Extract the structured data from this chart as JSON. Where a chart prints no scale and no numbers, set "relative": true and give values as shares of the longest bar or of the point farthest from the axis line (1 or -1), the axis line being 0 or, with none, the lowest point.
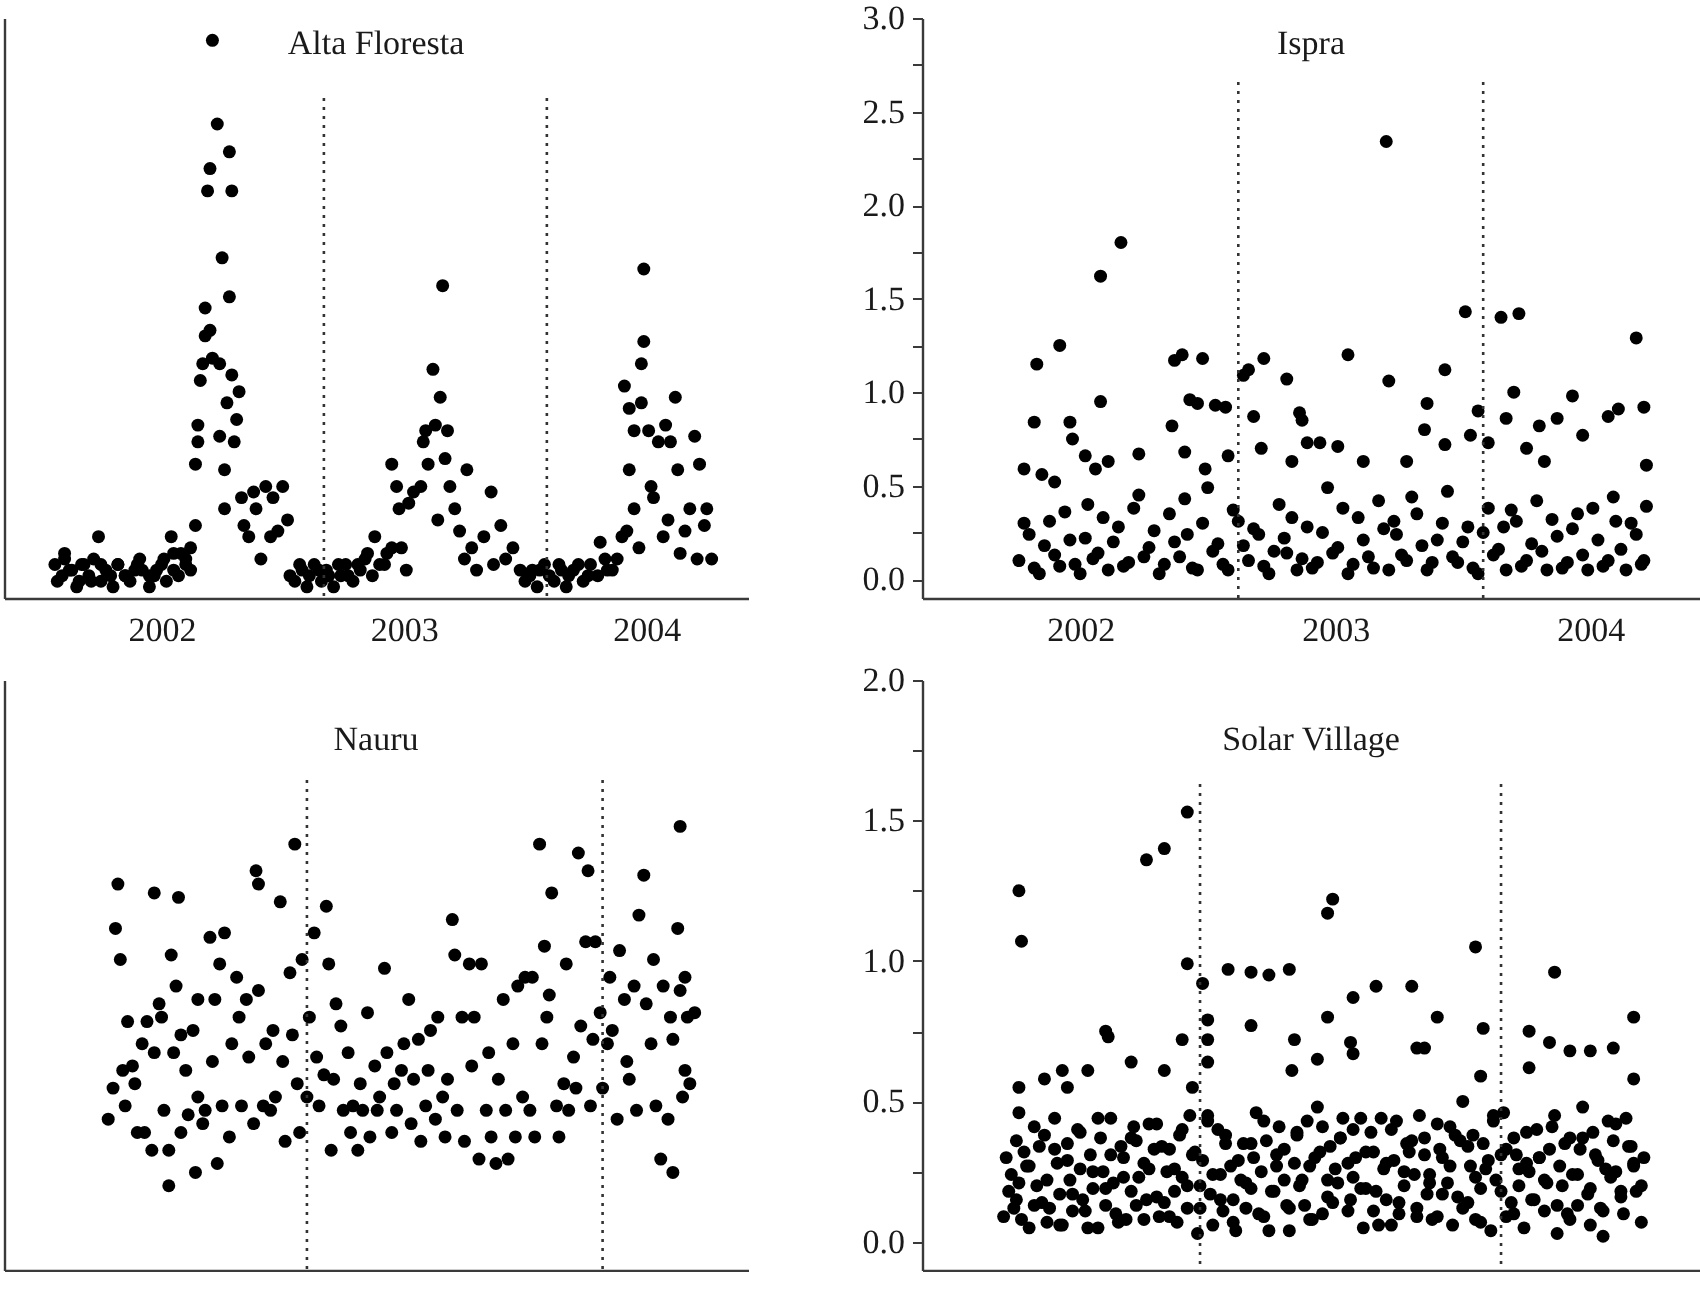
{
  "chart_data": [
    {
      "type": "scatter",
      "title": "Alta Floresta",
      "relative": true,
      "color": "#000000",
      "marker": "circle",
      "grid": false,
      "xlim": [
        2001.35,
        2004.42
      ],
      "xticks": [
        2002,
        2003,
        2004
      ],
      "ref_lines": [
        {
          "axis": "x",
          "value": 2002.67,
          "line_style": "dotted",
          "color": "#333333"
        },
        {
          "axis": "x",
          "value": 2003.59,
          "line_style": "dotted",
          "color": "#333333"
        }
      ],
      "x": [
        2001.56,
        2001.59,
        2001.6,
        2001.63,
        2001.66,
        2001.68,
        2001.71,
        2001.74,
        2001.75,
        2001.79,
        2001.82,
        2001.85,
        2001.89,
        2001.91,
        2001.95,
        2001.98,
        2002.01,
        2002.04,
        2002.05,
        2002.08,
        2002.1,
        2002.12,
        2002.14,
        2002.14,
        2002.15,
        2002.15,
        2002.16,
        2002.17,
        2002.18,
        2002.18,
        2002.19,
        2002.2,
        2002.2,
        2002.21,
        2002.21,
        2002.23,
        2002.24,
        2002.24,
        2002.25,
        2002.26,
        2002.26,
        2002.27,
        2002.28,
        2002.28,
        2002.29,
        2002.29,
        2002.3,
        2002.31,
        2002.32,
        2002.33,
        2002.34,
        2002.36,
        2002.38,
        2002.39,
        2002.41,
        2002.43,
        2002.45,
        2002.46,
        2002.48,
        2002.5,
        2002.52,
        2002.53,
        2002.57,
        2002.61,
        2002.65,
        2002.69,
        2002.73,
        2002.77,
        2002.81,
        2002.85,
        2002.88,
        2002.92,
        2002.95,
        2003.01,
        2002.95,
        2002.97,
        2002.98,
        2002.99,
        2003.02,
        2003.04,
        2003.07,
        2003.08,
        2003.09,
        2003.1,
        2003.12,
        2003.13,
        2003.14,
        2003.15,
        2003.16,
        2003.17,
        2003.18,
        2003.19,
        2003.21,
        2003.23,
        2003.25,
        2003.26,
        2003.28,
        2003.3,
        2003.33,
        2003.36,
        2003.37,
        2003.4,
        2003.42,
        2003.45,
        2003.48,
        2003.52,
        2003.56,
        2003.6,
        2003.64,
        2003.68,
        2003.72,
        2003.76,
        2003.81,
        2003.84,
        2003.88,
        2003.9,
        2003.91,
        2003.92,
        2003.93,
        2003.93,
        2003.95,
        2003.95,
        2003.97,
        2003.98,
        2003.98,
        2003.99,
        2003.99,
        2004.01,
        2004.02,
        2004.03,
        2004.05,
        2004.07,
        2004.08,
        2004.09,
        2004.1,
        2004.12,
        2004.13,
        2004.14,
        2004.16,
        2004.18,
        2004.2,
        2004.21,
        2004.22,
        2004.24,
        2004.25,
        2004.27,
        2001.57,
        2001.6,
        2001.62,
        2001.65,
        2001.67,
        2001.7,
        2001.72,
        2001.75,
        2001.77,
        2001.8,
        2001.82,
        2001.85,
        2001.87,
        2001.9,
        2001.92,
        2001.95,
        2001.97,
        2002.0,
        2002.02,
        2002.05,
        2002.07,
        2002.1,
        2002.12,
        2002.55,
        2002.58,
        2002.6,
        2002.63,
        2002.66,
        2002.68,
        2002.71,
        2002.74,
        2002.76,
        2002.79,
        2002.82,
        2002.84,
        2002.87,
        2002.9,
        2002.93,
        2003.5,
        2003.53,
        2003.55,
        2003.58,
        2003.62,
        2003.65,
        2003.67,
        2003.7,
        2003.74,
        2003.77,
        2003.8,
        2003.83,
        2003.86
      ],
      "values": [
        0.06,
        0.04,
        0.08,
        0.05,
        0.03,
        0.06,
        0.03,
        0.11,
        0.06,
        0.04,
        0.06,
        0.04,
        0.05,
        0.07,
        0.04,
        0.05,
        0.07,
        0.11,
        0.05,
        0.08,
        0.06,
        0.09,
        0.13,
        0.24,
        0.28,
        0.31,
        0.39,
        0.42,
        0.47,
        0.52,
        0.73,
        0.77,
        0.48,
        1.0,
        0.43,
        0.85,
        0.29,
        0.42,
        0.61,
        0.23,
        0.16,
        0.35,
        0.8,
        0.54,
        0.4,
        0.73,
        0.28,
        0.32,
        0.37,
        0.18,
        0.13,
        0.11,
        0.19,
        0.16,
        0.07,
        0.2,
        0.11,
        0.18,
        0.12,
        0.2,
        0.14,
        0.04,
        0.06,
        0.04,
        0.05,
        0.04,
        0.06,
        0.04,
        0.06,
        0.08,
        0.11,
        0.06,
        0.09,
        0.05,
        0.24,
        0.2,
        0.16,
        0.09,
        0.17,
        0.19,
        0.2,
        0.28,
        0.3,
        0.24,
        0.41,
        0.31,
        0.14,
        0.36,
        0.56,
        0.25,
        0.3,
        0.2,
        0.16,
        0.12,
        0.07,
        0.23,
        0.09,
        0.05,
        0.11,
        0.19,
        0.06,
        0.13,
        0.07,
        0.09,
        0.05,
        0.04,
        0.05,
        0.04,
        0.06,
        0.04,
        0.06,
        0.04,
        0.1,
        0.05,
        0.07,
        0.11,
        0.38,
        0.12,
        0.34,
        0.23,
        0.16,
        0.3,
        0.09,
        0.35,
        0.42,
        0.59,
        0.46,
        0.3,
        0.2,
        0.18,
        0.28,
        0.11,
        0.31,
        0.14,
        0.28,
        0.36,
        0.23,
        0.08,
        0.12,
        0.16,
        0.29,
        0.07,
        0.24,
        0.13,
        0.16,
        0.07,
        0.03,
        0.07,
        0.05,
        0.02,
        0.06,
        0.04,
        0.07,
        0.03,
        0.05,
        0.02,
        0.06,
        0.04,
        0.03,
        0.06,
        0.05,
        0.02,
        0.04,
        0.06,
        0.03,
        0.08,
        0.04,
        0.07,
        0.05,
        0.03,
        0.05,
        0.02,
        0.06,
        0.03,
        0.05,
        0.02,
        0.04,
        0.06,
        0.03,
        0.05,
        0.07,
        0.04,
        0.06,
        0.08,
        0.03,
        0.05,
        0.02,
        0.06,
        0.03,
        0.05,
        0.02,
        0.05,
        0.03,
        0.06,
        0.04,
        0.07,
        0.05
      ]
    },
    {
      "type": "scatter",
      "title": "Ispra",
      "color": "#000000",
      "marker": "circle",
      "grid": false,
      "xlim": [
        2001.38,
        2004.43
      ],
      "xticks": [
        2002,
        2003,
        2004
      ],
      "ylim": [
        -0.1,
        3.0
      ],
      "yticks": [
        {
          "value": 0,
          "label": "0.0"
        },
        {
          "value": 0.25,
          "label": null
        },
        0.5,
        {
          "value": 0.75,
          "label": null
        },
        {
          "value": 1,
          "label": "1.0"
        },
        {
          "value": 1.25,
          "label": null
        },
        1.5,
        {
          "value": 1.75,
          "label": null
        },
        {
          "value": 2,
          "label": "2.0"
        },
        {
          "value": 2.25,
          "label": null
        },
        2.5,
        {
          "value": 2.75,
          "label": null
        },
        {
          "value": 3,
          "label": "3.0"
        }
      ],
      "ref_lines": [
        {
          "axis": "x",
          "value": 2002.62,
          "line_style": "dotted",
          "color": "#333333"
        },
        {
          "axis": "x",
          "value": 2003.58,
          "line_style": "dotted",
          "color": "#333333"
        }
      ],
      "x": [
        2001.78,
        2001.82,
        2001.83,
        2001.85,
        2001.9,
        2001.92,
        2001.96,
        2001.97,
        2002.02,
        2002.06,
        2002.08,
        2002.08,
        2002.11,
        2002.16,
        2002.23,
        2002.36,
        2002.37,
        2002.4,
        2002.41,
        2002.43,
        2002.46,
        2002.48,
        2002.49,
        2002.53,
        2002.57,
        2002.58,
        2002.64,
        2002.66,
        2002.68,
        2002.72,
        2002.71,
        2002.81,
        2002.83,
        2002.86,
        2002.87,
        2002.89,
        2002.94,
        2003.01,
        2003.05,
        2003.11,
        2003.2,
        2003.21,
        2003.28,
        2003.36,
        2003.35,
        2003.43,
        2003.43,
        2003.51,
        2003.53,
        2003.56,
        2003.6,
        2003.65,
        2003.67,
        2003.7,
        2003.72,
        2003.75,
        2003.8,
        2003.82,
        2003.87,
        2003.93,
        2003.97,
        2004.07,
        2004.11,
        2004.18,
        2004.21,
        2004.22,
        2001.76,
        2001.8,
        2001.84,
        2001.88,
        2001.92,
        2001.96,
        2002.0,
        2002.03,
        2002.07,
        2002.11,
        2002.15,
        2002.19,
        2002.23,
        2002.27,
        2002.31,
        2002.35,
        2002.39,
        2002.42,
        2002.46,
        2002.5,
        2002.54,
        2002.58,
        2002.62,
        2002.66,
        2002.7,
        2002.74,
        2002.78,
        2002.81,
        2002.85,
        2002.89,
        2002.93,
        2002.97,
        2003.01,
        2003.05,
        2003.09,
        2003.13,
        2003.17,
        2003.21,
        2003.24,
        2003.28,
        2003.32,
        2003.36,
        2003.4,
        2003.44,
        2003.48,
        2003.52,
        2003.56,
        2003.6,
        2003.64,
        2003.67,
        2003.71,
        2003.75,
        2003.79,
        2003.83,
        2003.87,
        2003.91,
        2003.95,
        2003.99,
        2004.03,
        2004.07,
        2004.1,
        2004.14,
        2004.18,
        2004.21,
        2001.78,
        2001.82,
        2001.86,
        2001.9,
        2001.94,
        2001.98,
        2002.02,
        2002.05,
        2002.09,
        2002.13,
        2002.17,
        2002.21,
        2002.25,
        2002.29,
        2002.33,
        2002.37,
        2002.41,
        2002.44,
        2002.48,
        2002.52,
        2002.56,
        2002.6,
        2002.64,
        2002.68,
        2002.72,
        2002.76,
        2002.8,
        2002.83,
        2002.87,
        2002.91,
        2002.95,
        2002.99,
        2003.03,
        2003.07,
        2003.11,
        2003.15,
        2003.19,
        2003.23,
        2003.26,
        2003.3,
        2003.34,
        2003.38,
        2003.42,
        2003.46,
        2003.5,
        2003.54,
        2003.58,
        2003.62,
        2003.66,
        2003.69,
        2003.73,
        2003.77,
        2003.81,
        2003.85,
        2003.89,
        2003.93,
        2003.97,
        2004.01,
        2004.05,
        2004.09,
        2004.12,
        2004.16,
        2004.2,
        2004.22
      ],
      "values": [
        0.59,
        0.84,
        1.15,
        0.56,
        0.52,
        1.25,
        0.84,
        0.75,
        0.66,
        0.59,
        1.62,
        0.95,
        0.63,
        1.8,
        0.67,
        0.82,
        1.17,
        1.2,
        0.68,
        0.96,
        0.94,
        1.18,
        0.59,
        0.93,
        0.92,
        0.66,
        1.09,
        1.12,
        0.87,
        1.18,
        0.7,
        1.07,
        0.63,
        0.89,
        0.85,
        0.73,
        0.73,
        0.71,
        1.2,
        0.63,
        2.34,
        1.06,
        0.63,
        0.94,
        0.8,
        1.12,
        0.72,
        1.43,
        0.77,
        0.9,
        0.73,
        1.4,
        0.86,
        1.0,
        1.42,
        0.7,
        0.82,
        0.63,
        0.86,
        0.98,
        0.77,
        0.87,
        0.91,
        1.29,
        0.92,
        0.61,
        0.1,
        0.24,
        0.03,
        0.31,
        0.07,
        0.21,
        0.03,
        0.4,
        0.14,
        0.05,
        0.28,
        0.09,
        0.45,
        0.17,
        0.03,
        0.35,
        0.12,
        0.24,
        0.05,
        0.49,
        0.19,
        0.05,
        0.31,
        0.1,
        0.24,
        0.03,
        0.4,
        0.14,
        0.05,
        0.28,
        0.09,
        0.49,
        0.17,
        0.03,
        0.33,
        0.12,
        0.42,
        0.05,
        0.24,
        0.1,
        0.35,
        0.05,
        0.21,
        0.47,
        0.09,
        0.28,
        0.03,
        0.38,
        0.16,
        0.05,
        0.31,
        0.1,
        0.42,
        0.05,
        0.23,
        0.09,
        0.35,
        0.05,
        0.21,
        0.1,
        0.31,
        0.05,
        0.24,
        0.1,
        0.3,
        0.06,
        0.18,
        0.13,
        0.36,
        0.08,
        0.22,
        0.11,
        0.33,
        0.2,
        0.07,
        0.38,
        0.12,
        0.26,
        0.08,
        0.2,
        0.43,
        0.06,
        0.3,
        0.15,
        0.08,
        0.37,
        0.18,
        0.27,
        0.07,
        0.15,
        0.22,
        0.33,
        0.11,
        0.06,
        0.25,
        0.14,
        0.38,
        0.08,
        0.21,
        0.06,
        0.27,
        0.31,
        0.13,
        0.44,
        0.18,
        0.09,
        0.3,
        0.12,
        0.2,
        0.06,
        0.25,
        0.13,
        0.28,
        0.37,
        0.07,
        0.19,
        0.15,
        0.32,
        0.06,
        0.27,
        0.13,
        0.38,
        0.07,
        0.44,
        0.16,
        0.3,
        0.08,
        0.39
      ]
    },
    {
      "type": "scatter",
      "title": "Nauru",
      "relative": true,
      "color": "#000000",
      "marker": "circle",
      "grid": false,
      "xlim": [
        2001.35,
        2004.42
      ],
      "xticks": [
        2002,
        2003,
        2004
      ],
      "tick_labels": false,
      "ref_lines": [
        {
          "axis": "x",
          "value": 2002.6,
          "line_style": "dotted",
          "color": "#333333"
        },
        {
          "axis": "x",
          "value": 2003.82,
          "line_style": "dotted",
          "color": "#333333"
        }
      ],
      "x": [
        2001.78,
        2001.8,
        2001.81,
        2001.82,
        2001.83,
        2001.84,
        2001.85,
        2001.86,
        2001.88,
        2001.89,
        2001.9,
        2001.92,
        2001.93,
        2001.94,
        2001.96,
        2001.97,
        2001.97,
        2001.99,
        2002.0,
        2002.01,
        2002.03,
        2002.03,
        2002.04,
        2002.05,
        2002.06,
        2002.07,
        2002.08,
        2002.08,
        2002.1,
        2002.11,
        2002.13,
        2002.14,
        2002.15,
        2002.15,
        2002.17,
        2002.18,
        2002.2,
        2002.21,
        2002.22,
        2002.23,
        2002.24,
        2002.25,
        2002.26,
        2002.28,
        2002.29,
        2002.31,
        2002.32,
        2002.33,
        2002.35,
        2002.36,
        2002.38,
        2002.39,
        2002.4,
        2002.4,
        2002.42,
        2002.43,
        2002.45,
        2002.46,
        2002.47,
        2002.49,
        2002.5,
        2002.51,
        2002.53,
        2002.54,
        2002.55,
        2002.56,
        2002.57,
        2002.58,
        2002.6,
        2002.61,
        2002.63,
        2002.64,
        2002.65,
        2002.67,
        2002.68,
        2002.69,
        2002.7,
        2002.71,
        2002.72,
        2002.74,
        2002.75,
        2002.77,
        2002.78,
        2002.79,
        2002.81,
        2002.82,
        2002.83,
        2002.85,
        2002.86,
        2002.88,
        2002.89,
        2002.9,
        2002.92,
        2002.93,
        2002.95,
        2002.96,
        2002.97,
        2002.99,
        2003.0,
        2003.02,
        2003.03,
        2003.04,
        2003.06,
        2003.07,
        2003.09,
        2003.1,
        2003.11,
        2003.13,
        2003.14,
        2003.16,
        2003.17,
        2003.18,
        2003.2,
        2003.21,
        2003.22,
        2003.24,
        2003.25,
        2003.27,
        2003.28,
        2003.29,
        2003.31,
        2003.32,
        2003.34,
        2003.35,
        2003.36,
        2003.38,
        2003.39,
        2003.41,
        2003.42,
        2003.43,
        2003.45,
        2003.46,
        2003.47,
        2003.49,
        2003.5,
        2003.52,
        2003.53,
        2003.54,
        2003.56,
        2003.57,
        2003.58,
        2003.59,
        2003.6,
        2003.61,
        2003.63,
        2003.64,
        2003.66,
        2003.67,
        2003.68,
        2003.7,
        2003.71,
        2003.72,
        2003.73,
        2003.75,
        2003.76,
        2003.77,
        2003.78,
        2003.79,
        2003.81,
        2003.82,
        2003.84,
        2003.85,
        2003.86,
        2003.88,
        2003.89,
        2003.91,
        2003.92,
        2003.93,
        2003.95,
        2003.96,
        2003.97,
        2003.99,
        2004.0,
        2004.02,
        2004.03,
        2004.04,
        2004.06,
        2004.07,
        2004.09,
        2004.1,
        2004.11,
        2004.11,
        2004.13,
        2004.14,
        2004.14,
        2004.15,
        2004.16,
        2004.16,
        2004.17,
        2004.18,
        2004.2
      ],
      "values": [
        0.34,
        0.41,
        0.77,
        0.87,
        0.7,
        0.45,
        0.37,
        0.56,
        0.46,
        0.42,
        0.31,
        0.51,
        0.31,
        0.56,
        0.27,
        0.85,
        0.49,
        0.6,
        0.57,
        0.36,
        0.27,
        0.19,
        0.71,
        0.49,
        0.64,
        0.84,
        0.31,
        0.53,
        0.45,
        0.35,
        0.54,
        0.22,
        0.61,
        0.39,
        0.33,
        0.36,
        0.75,
        0.47,
        0.61,
        0.24,
        0.69,
        0.37,
        0.76,
        0.3,
        0.51,
        0.66,
        0.57,
        0.37,
        0.61,
        0.48,
        0.33,
        0.9,
        0.87,
        0.63,
        0.37,
        0.51,
        0.36,
        0.54,
        0.39,
        0.83,
        0.47,
        0.29,
        0.67,
        0.53,
        0.96,
        0.42,
        0.31,
        0.7,
        0.39,
        0.57,
        0.76,
        0.48,
        0.37,
        0.44,
        0.82,
        0.69,
        0.27,
        0.43,
        0.6,
        0.55,
        0.36,
        0.49,
        0.31,
        0.37,
        0.27,
        0.42,
        0.36,
        0.58,
        0.3,
        0.46,
        0.36,
        0.39,
        0.68,
        0.49,
        0.31,
        0.42,
        0.36,
        0.45,
        0.51,
        0.61,
        0.33,
        0.43,
        0.52,
        0.29,
        0.37,
        0.45,
        0.54,
        0.34,
        0.57,
        0.39,
        0.3,
        0.43,
        0.79,
        0.71,
        0.36,
        0.57,
        0.29,
        0.69,
        0.46,
        0.57,
        0.25,
        0.69,
        0.36,
        0.49,
        0.3,
        0.24,
        0.43,
        0.61,
        0.36,
        0.25,
        0.51,
        0.3,
        0.64,
        0.39,
        0.66,
        0.36,
        0.66,
        0.3,
        0.96,
        0.51,
        0.73,
        0.57,
        0.62,
        0.85,
        0.37,
        0.3,
        0.42,
        0.69,
        0.36,
        0.48,
        0.41,
        0.94,
        0.55,
        0.74,
        0.9,
        0.37,
        0.52,
        0.74,
        0.58,
        0.41,
        0.51,
        0.66,
        0.54,
        0.34,
        0.72,
        0.61,
        0.47,
        0.43,
        0.64,
        0.36,
        0.8,
        0.89,
        0.6,
        0.51,
        0.7,
        0.37,
        0.25,
        0.64,
        0.34,
        0.57,
        0.22,
        0.52,
        0.77,
        0.63,
        1.0,
        0.39,
        0.66,
        0.45,
        0.57,
        0.42,
        0.58
      ]
    },
    {
      "type": "scatter",
      "title": "Solar Village",
      "color": "#000000",
      "marker": "circle",
      "grid": false,
      "xlim": [
        2001.38,
        2004.43
      ],
      "xticks": [
        2002,
        2003,
        2004
      ],
      "tick_labels": "y",
      "ylim": [
        -0.1,
        2.0
      ],
      "yticks": [
        {
          "value": 0,
          "label": "0.0"
        },
        {
          "value": 0.25,
          "label": null
        },
        0.5,
        {
          "value": 0.75,
          "label": null
        },
        {
          "value": 1,
          "label": "1.0"
        },
        {
          "value": 1.25,
          "label": null
        },
        1.5,
        {
          "value": 1.75,
          "label": null
        },
        {
          "value": 2,
          "label": "2.0"
        }
      ],
      "ref_lines": [
        {
          "axis": "x",
          "value": 2002.47,
          "line_style": "dotted",
          "color": "#333333"
        },
        {
          "axis": "x",
          "value": 2003.65,
          "line_style": "dotted",
          "color": "#333333"
        }
      ],
      "x": [
        2001.7,
        2001.71,
        2001.73,
        2001.74,
        2001.75,
        2001.76,
        2001.77,
        2001.76,
        2001.76,
        2001.76,
        2001.78,
        2001.79,
        2001.8,
        2001.82,
        2001.83,
        2001.84,
        2001.86,
        2001.86,
        2001.87,
        2001.88,
        2001.9,
        2001.91,
        2001.92,
        2001.93,
        2001.93,
        2001.95,
        2001.95,
        2001.96,
        2001.97,
        2001.99,
        2002.0,
        2002.01,
        2002.03,
        2002.03,
        2002.04,
        2002.05,
        2002.07,
        2002.08,
        2002.09,
        2002.1,
        2002.11,
        2002.1,
        2002.12,
        2002.13,
        2002.14,
        2002.16,
        2002.17,
        2002.18,
        2002.2,
        2002.2,
        2002.21,
        2002.22,
        2002.23,
        2002.25,
        2002.26,
        2002.26,
        2002.27,
        2002.29,
        2002.3,
        2002.31,
        2002.33,
        2002.33,
        2002.33,
        2002.34,
        2002.35,
        2002.37,
        2002.38,
        2002.39,
        2002.4,
        2002.4,
        2002.42,
        2002.42,
        2002.42,
        2002.43,
        2002.44,
        2002.44,
        2002.46,
        2002.47,
        2002.48,
        2002.48,
        2002.5,
        2002.5,
        2002.5,
        2002.5,
        2002.51,
        2002.52,
        2002.54,
        2002.55,
        2002.56,
        2002.57,
        2002.58,
        2002.59,
        2002.6,
        2002.61,
        2002.63,
        2002.64,
        2002.65,
        2002.67,
        2002.67,
        2002.67,
        2002.68,
        2002.69,
        2002.71,
        2002.72,
        2002.73,
        2002.74,
        2002.74,
        2002.76,
        2002.77,
        2002.78,
        2002.8,
        2002.81,
        2002.82,
        2002.82,
        2002.83,
        2002.84,
        2002.84,
        2002.85,
        2002.86,
        2002.88,
        2002.89,
        2002.9,
        2002.91,
        2002.93,
        2002.93,
        2002.94,
        2002.95,
        2002.97,
        2002.97,
        2002.97,
        2002.98,
        2002.99,
        2002.99,
        2003.01,
        2003.02,
        2003.03,
        2003.05,
        2003.06,
        2003.06,
        2003.07,
        2003.07,
        2003.07,
        2003.08,
        2003.1,
        2003.11,
        2003.12,
        2003.14,
        2003.15,
        2003.16,
        2003.16,
        2003.18,
        2003.19,
        2003.2,
        2003.22,
        2003.23,
        2003.24,
        2003.25,
        2003.27,
        2003.28,
        2003.29,
        2003.3,
        2003.31,
        2003.32,
        2003.32,
        2003.35,
        2003.33,
        2003.35,
        2003.36,
        2003.37,
        2003.38,
        2003.4,
        2003.4,
        2003.41,
        2003.42,
        2003.44,
        2003.45,
        2003.46,
        2003.48,
        2003.49,
        2003.5,
        2003.52,
        2003.53,
        2003.54,
        2003.55,
        2003.55,
        2003.57,
        2003.58,
        2003.57,
        2003.58,
        2003.59,
        2003.61,
        2003.62,
        2003.63,
        2003.65,
        2003.66,
        2003.67,
        2003.69,
        2003.7,
        2003.71,
        2003.72,
        2003.74,
        2003.75,
        2003.76,
        2003.76,
        2003.76,
        2003.78,
        2003.79,
        2003.8,
        2003.82,
        2003.83,
        2003.84,
        2003.84,
        2003.86,
        2003.86,
        2003.87,
        2003.88,
        2003.89,
        2003.91,
        2003.92,
        2003.92,
        2003.93,
        2003.95,
        2003.96,
        2003.97,
        2003.99,
        2004.0,
        2004.0,
        2004.01,
        2004.03,
        2004.04,
        2004.05,
        2004.06,
        2004.08,
        2004.09,
        2004.09,
        2004.1,
        2004.12,
        2004.13,
        2004.14,
        2004.16,
        2004.17,
        2004.17,
        2004.17,
        2004.18,
        2004.2,
        2004.21,
        2001.72,
        2001.75,
        2001.77,
        2001.8,
        2001.82,
        2001.85,
        2001.87,
        2001.9,
        2001.92,
        2001.95,
        2001.97,
        2002.0,
        2002.02,
        2002.05,
        2002.07,
        2002.1,
        2002.12,
        2002.15,
        2002.17,
        2002.2,
        2002.22,
        2002.25,
        2002.27,
        2002.3,
        2002.32,
        2002.35,
        2002.37,
        2002.4,
        2002.42,
        2002.45,
        2002.47,
        2002.5,
        2002.52,
        2002.55,
        2002.57,
        2002.6,
        2002.62,
        2002.65,
        2002.67,
        2002.7,
        2002.72,
        2002.75,
        2002.77,
        2002.8,
        2002.82,
        2002.85,
        2002.87,
        2002.9,
        2002.92,
        2002.95,
        2002.97,
        2003.0,
        2003.02,
        2003.05,
        2003.07,
        2003.1,
        2003.12,
        2003.15,
        2003.17,
        2003.2,
        2003.22,
        2003.25,
        2003.27,
        2003.3,
        2003.32,
        2003.35,
        2003.37,
        2003.4,
        2003.42,
        2003.45,
        2003.47,
        2003.5,
        2003.52,
        2003.55,
        2003.57,
        2003.6,
        2003.62,
        2003.65,
        2003.67,
        2003.7,
        2003.72,
        2003.75,
        2003.77,
        2003.8,
        2003.82,
        2003.85,
        2003.87,
        2003.9,
        2003.92,
        2003.95,
        2003.97,
        2004.0,
        2004.02,
        2004.05,
        2004.07,
        2004.1,
        2004.12,
        2004.15,
        2004.17,
        2004.2
      ],
      "values": [
        0.09,
        0.3,
        0.24,
        0.12,
        0.15,
        1.25,
        1.07,
        0.55,
        0.46,
        0.21,
        0.32,
        0.27,
        0.05,
        0.13,
        0.2,
        0.34,
        0.38,
        0.58,
        0.07,
        0.12,
        0.44,
        0.28,
        0.17,
        0.61,
        0.06,
        0.35,
        0.55,
        0.22,
        0.11,
        0.4,
        0.26,
        0.15,
        0.61,
        0.05,
        0.31,
        0.19,
        0.05,
        0.37,
        0.25,
        0.75,
        0.73,
        0.13,
        0.44,
        0.21,
        0.1,
        0.34,
        0.3,
        0.08,
        0.64,
        0.18,
        0.41,
        0.36,
        0.23,
        0.08,
        1.36,
        0.15,
        0.26,
        0.33,
        0.42,
        0.09,
        0.14,
        1.4,
        0.61,
        0.25,
        0.33,
        0.18,
        0.07,
        0.38,
        0.72,
        0.23,
        0.99,
        1.53,
        0.12,
        0.45,
        0.55,
        0.31,
        0.03,
        0.2,
        0.29,
        0.92,
        0.79,
        0.72,
        0.64,
        0.43,
        0.17,
        0.06,
        0.4,
        0.24,
        0.11,
        0.35,
        0.97,
        0.27,
        0.15,
        0.04,
        0.22,
        0.35,
        0.12,
        0.77,
        0.96,
        0.19,
        0.3,
        0.46,
        0.25,
        0.09,
        0.36,
        0.95,
        0.04,
        0.18,
        0.31,
        0.41,
        0.22,
        0.13,
        0.97,
        0.04,
        0.61,
        0.72,
        0.28,
        0.38,
        0.2,
        0.13,
        0.43,
        0.27,
        0.08,
        0.65,
        0.48,
        0.32,
        0.1,
        0.22,
        1.17,
        0.8,
        0.34,
        1.22,
        0.14,
        0.21,
        0.37,
        0.44,
        0.28,
        0.71,
        0.15,
        0.67,
        0.87,
        0.4,
        0.3,
        0.19,
        0.05,
        0.32,
        0.39,
        0.11,
        0.91,
        0.18,
        0.44,
        0.26,
        0.15,
        0.06,
        0.29,
        0.43,
        0.1,
        0.2,
        0.35,
        0.32,
        0.91,
        0.24,
        0.12,
        0.69,
        0.69,
        0.45,
        0.37,
        0.17,
        0.24,
        0.08,
        0.8,
        0.09,
        0.33,
        0.3,
        0.21,
        0.41,
        0.06,
        0.16,
        0.36,
        0.5,
        0.14,
        0.27,
        0.38,
        1.05,
        0.08,
        0.59,
        0.76,
        0.19,
        0.35,
        0.26,
        0.04,
        0.43,
        0.22,
        0.31,
        0.46,
        0.09,
        0.14,
        0.37,
        0.31,
        0.2,
        0.05,
        0.28,
        0.75,
        0.62,
        0.25,
        0.15,
        0.4,
        0.3,
        0.11,
        0.21,
        0.71,
        0.33,
        0.45,
        0.96,
        0.03,
        0.27,
        0.2,
        0.1,
        0.68,
        0.37,
        0.24,
        0.13,
        0.33,
        0.48,
        0.17,
        0.68,
        0.06,
        0.39,
        0.29,
        0.12,
        0.02,
        0.26,
        0.23,
        0.69,
        0.36,
        0.42,
        0.18,
        0.1,
        0.44,
        0.34,
        0.8,
        0.58,
        0.27,
        0.18,
        0.07,
        0.3,
        0.18,
        0.36,
        0.08,
        0.27,
        0.41,
        0.14,
        0.22,
        0.33,
        0.06,
        0.29,
        0.17,
        0.39,
        0.11,
        0.25,
        0.44,
        0.19,
        0.31,
        0.07,
        0.23,
        0.37,
        0.13,
        0.28,
        0.42,
        0.16,
        0.34,
        0.09,
        0.26,
        0.4,
        0.2,
        0.32,
        0.12,
        0.45,
        0.24,
        0.15,
        0.38,
        0.07,
        0.29,
        0.21,
        0.35,
        0.1,
        0.43,
        0.18,
        0.27,
        0.33,
        0.12,
        0.39,
        0.22,
        0.08,
        0.3,
        0.41,
        0.16,
        0.26,
        0.37,
        0.11,
        0.23,
        0.44,
        0.19,
        0.32,
        0.06,
        0.28,
        0.4,
        0.14,
        0.25,
        0.36,
        0.09,
        0.31,
        0.21,
        0.42,
        0.17,
        0.27,
        0.38,
        0.12,
        0.34,
        0.23,
        0.07,
        0.29,
        0.45,
        0.18,
        0.33,
        0.1,
        0.26,
        0.39,
        0.15,
        0.3,
        0.22,
        0.41,
        0.13,
        0.35,
        0.08,
        0.24,
        0.37,
        0.19,
        0.31,
        0.11,
        0.43,
        0.25,
        0.16,
        0.34,
        0.28,
        0.2
      ]
    }
  ]
}
